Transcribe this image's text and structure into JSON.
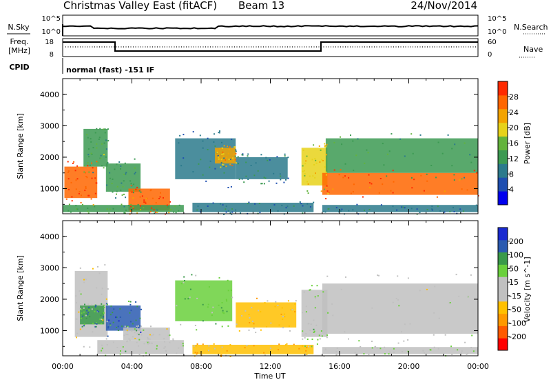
{
  "header": {
    "station": "Christmas Valley East (fitACF)",
    "beam": "Beam 13",
    "date": "24/Nov/2014"
  },
  "noise_panel": {
    "left_label": "N.Sky",
    "right_label": "N.Search",
    "left_ticks": [
      "10^5",
      "10^0"
    ],
    "right_ticks": [
      "10^5",
      "10^0"
    ]
  },
  "freq_panel": {
    "left_label_1": "Freq.",
    "left_label_2": "[MHz]",
    "right_label": "Nave",
    "left_ticks": [
      "18",
      "8"
    ],
    "right_ticks": [
      "60",
      "0"
    ]
  },
  "cpid": {
    "label": "CPID",
    "text": "normal (fast) -151 IF"
  },
  "x_axis": {
    "label": "Time UT",
    "ticks": [
      "00:00",
      "04:00",
      "08:00",
      "12:00",
      "16:00",
      "20:00",
      "00:00"
    ]
  },
  "colors": {
    "power": [
      "#0000ee",
      "#1e4eb0",
      "#2b7a8c",
      "#3c9a52",
      "#63b33c",
      "#e7d21a",
      "#f3a300",
      "#ff6600",
      "#ff2a00"
    ],
    "velocity": [
      "#ff0000",
      "#ff5a00",
      "#ff9900",
      "#ffc000",
      "#c0c0c0",
      "#c0c0c0",
      "#6ad03c",
      "#3a9a4a",
      "#2a5ab0",
      "#1a2ad0"
    ]
  },
  "chart_data": [
    {
      "type": "heatmap",
      "title": "",
      "xlabel": "Time UT",
      "ylabel": "Slant Range [km]",
      "x_ticks": [
        "00:00",
        "04:00",
        "08:00",
        "12:00",
        "16:00",
        "20:00",
        "00:00"
      ],
      "xlim_hours": [
        0,
        24
      ],
      "y_ticks": [
        "1000",
        "2000",
        "3000",
        "4000"
      ],
      "ylim": [
        200,
        4500
      ],
      "colorbar": {
        "label": "Power [dB]",
        "ticks": [
          "4",
          "8",
          "12",
          "16",
          "20",
          "24",
          "28"
        ],
        "range": [
          0,
          32
        ]
      },
      "regions": [
        {
          "t0": 0.1,
          "t1": 2.0,
          "r0": 700,
          "r1": 1700,
          "value": 28
        },
        {
          "t0": 1.2,
          "t1": 2.6,
          "r0": 1700,
          "r1": 2900,
          "value": 14
        },
        {
          "t0": 2.5,
          "t1": 4.5,
          "r0": 900,
          "r1": 1800,
          "value": 12
        },
        {
          "t0": 3.8,
          "t1": 6.2,
          "r0": 300,
          "r1": 1000,
          "value": 28
        },
        {
          "t0": 0.0,
          "t1": 7.0,
          "r0": 250,
          "r1": 480,
          "value": 14
        },
        {
          "t0": 6.5,
          "t1": 10.0,
          "r0": 1300,
          "r1": 2600,
          "value": 8
        },
        {
          "t0": 8.8,
          "t1": 10.0,
          "r0": 1800,
          "r1": 2300,
          "value": 22
        },
        {
          "t0": 10.0,
          "t1": 13.0,
          "r0": 1300,
          "r1": 2000,
          "value": 10
        },
        {
          "t0": 7.5,
          "t1": 14.5,
          "r0": 250,
          "r1": 550,
          "value": 8
        },
        {
          "t0": 13.8,
          "t1": 15.3,
          "r0": 1100,
          "r1": 2300,
          "value": 20
        },
        {
          "t0": 15.0,
          "t1": 24.0,
          "r0": 800,
          "r1": 1500,
          "value": 28
        },
        {
          "t0": 15.2,
          "t1": 24.0,
          "r0": 1500,
          "r1": 2600,
          "value": 12
        },
        {
          "t0": 15.0,
          "t1": 24.0,
          "r0": 250,
          "r1": 480,
          "value": 8
        }
      ]
    },
    {
      "type": "heatmap",
      "title": "",
      "xlabel": "Time UT",
      "ylabel": "Slant Range [km]",
      "x_ticks": [
        "00:00",
        "04:00",
        "08:00",
        "12:00",
        "16:00",
        "20:00",
        "00:00"
      ],
      "xlim_hours": [
        0,
        24
      ],
      "y_ticks": [
        "1000",
        "2000",
        "3000",
        "4000"
      ],
      "ylim": [
        200,
        4500
      ],
      "colorbar": {
        "label": "Velocity [m s^-1]",
        "ticks": [
          "200",
          "100",
          "50",
          "15",
          "-15",
          "-50",
          "-100",
          "-200"
        ],
        "range": [
          -250,
          250
        ]
      },
      "regions": [
        {
          "t0": 0.7,
          "t1": 2.6,
          "r0": 800,
          "r1": 2900,
          "value": 0
        },
        {
          "t0": 1.0,
          "t1": 2.4,
          "r0": 1200,
          "r1": 1800,
          "value": 120
        },
        {
          "t0": 2.5,
          "t1": 4.5,
          "r0": 1000,
          "r1": 1800,
          "value": 150
        },
        {
          "t0": 3.5,
          "t1": 6.2,
          "r0": 700,
          "r1": 1100,
          "value": 0
        },
        {
          "t0": 2.0,
          "t1": 7.0,
          "r0": 250,
          "r1": 700,
          "value": 40
        },
        {
          "t0": 6.5,
          "t1": 9.8,
          "r0": 1300,
          "r1": 2600,
          "value": 80
        },
        {
          "t0": 10.0,
          "t1": 13.5,
          "r0": 1100,
          "r1": 1900,
          "value": -60
        },
        {
          "t0": 7.5,
          "t1": 14.5,
          "r0": 250,
          "r1": 550,
          "value": -80
        },
        {
          "t0": 13.8,
          "t1": 15.3,
          "r0": 800,
          "r1": 2300,
          "value": 40
        },
        {
          "t0": 15.0,
          "t1": 24.0,
          "r0": 900,
          "r1": 2500,
          "value": 0
        },
        {
          "t0": 15.0,
          "t1": 24.0,
          "r0": 250,
          "r1": 480,
          "value": 30
        }
      ]
    }
  ]
}
